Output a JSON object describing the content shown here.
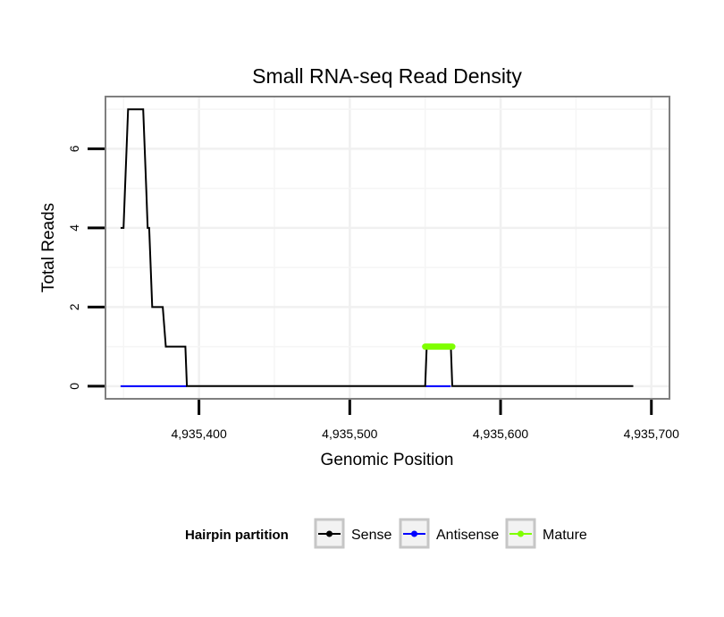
{
  "chart_data": {
    "type": "line",
    "title": "Small RNA-seq Read Density",
    "xlabel": "Genomic Position",
    "ylabel": "Total Reads",
    "xlim": [
      4935338,
      4935712
    ],
    "ylim": [
      -0.32,
      7.32
    ],
    "x_ticks": [
      4935400,
      4935500,
      4935600,
      4935700
    ],
    "x_tick_labels": [
      "4,935,400",
      "4,935,500",
      "4,935,600",
      "4,935,700"
    ],
    "y_ticks": [
      0,
      2,
      4,
      6
    ],
    "y_tick_labels": [
      "0",
      "2",
      "4",
      "6"
    ],
    "grid": true,
    "legend": {
      "title": "Hairpin partition",
      "placement": "bottom",
      "entries": [
        "Sense",
        "Antisense",
        "Mature"
      ]
    },
    "series": [
      {
        "name": "Sense",
        "color": "#000000",
        "x": [
          4935348,
          4935350,
          4935351,
          4935352,
          4935353,
          4935363,
          4935364,
          4935365,
          4935366,
          4935367,
          4935369,
          4935371,
          4935376,
          4935378,
          4935391,
          4935392,
          4935550,
          4935551,
          4935567,
          4935568,
          4935688
        ],
        "y": [
          4,
          4,
          5,
          6,
          7,
          7,
          6,
          5,
          4,
          4,
          2,
          2,
          2,
          1,
          1,
          0,
          0,
          1,
          1,
          0,
          0
        ]
      },
      {
        "name": "Antisense",
        "color": "#0000ff",
        "x": [
          4935348,
          4935392,
          4935550,
          4935567
        ],
        "y": [
          0,
          0,
          0,
          0
        ]
      },
      {
        "name": "Mature",
        "color": "#7fff00",
        "x": [
          4935550,
          4935568
        ],
        "y": [
          1,
          1
        ]
      }
    ]
  }
}
